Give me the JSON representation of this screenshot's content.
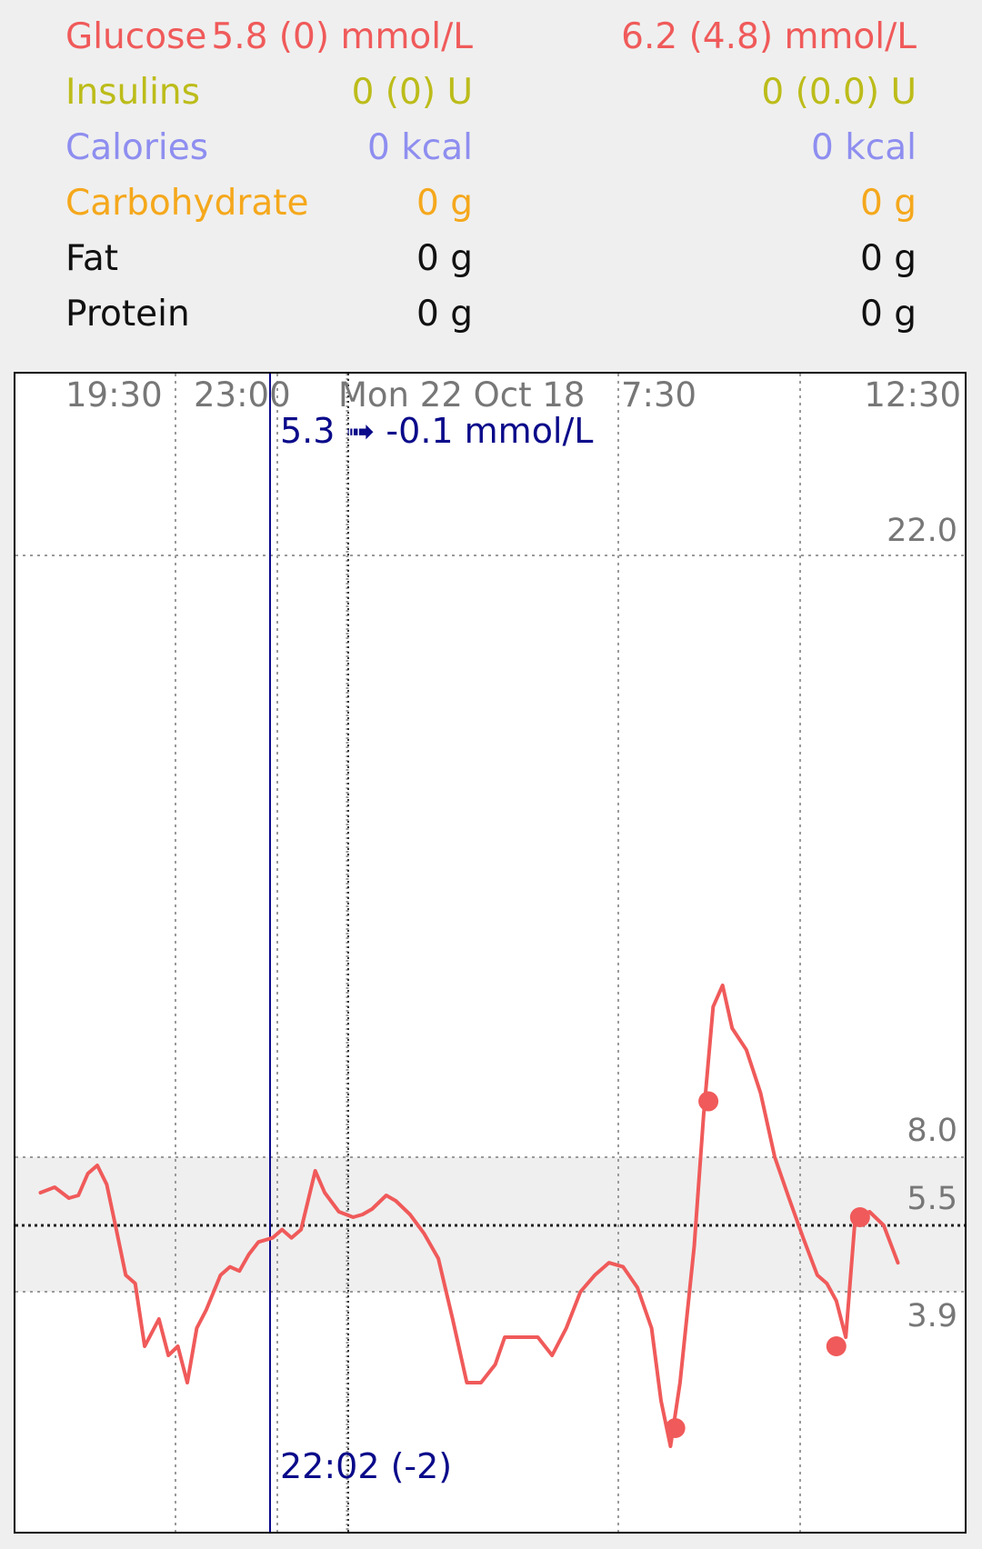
{
  "summary": {
    "rows": [
      {
        "label": "Glucose",
        "col1": "5.8 (0) mmol/L",
        "col2": "6.2 (4.8) mmol/L",
        "color": "#f05a5a"
      },
      {
        "label": "Insulins",
        "col1": "0 (0) U",
        "col2": "0 (0.0) U",
        "color": "#bcbc1a"
      },
      {
        "label": "Calories",
        "col1": "0 kcal",
        "col2": "0 kcal",
        "color": "#8e8ef0"
      },
      {
        "label": "Carbohydrate",
        "col1": "0 g",
        "col2": "0 g",
        "color": "#f5a81c"
      },
      {
        "label": "Fat",
        "col1": "0 g",
        "col2": "0 g",
        "color": "#111111"
      },
      {
        "label": "Protein",
        "col1": "0 g",
        "col2": "0 g",
        "color": "#111111"
      }
    ]
  },
  "chart_data": {
    "type": "line",
    "x_ticks": [
      "19:30",
      "23:00",
      "Mon 22 Oct 18",
      "7:30",
      "12:30"
    ],
    "y_ticks": [
      "22.0",
      "8.0",
      "5.5",
      "3.9"
    ],
    "target_range": [
      3.9,
      8.0
    ],
    "target_value": 5.5,
    "cursor": {
      "value_label": "5.3 ➟ -0.1 mmol/L",
      "time_label": "22:02 (-2)"
    },
    "series": [
      {
        "color": "#f05a5a",
        "points": [
          {
            "t": 18.0,
            "v": 6.7
          },
          {
            "t": 18.3,
            "v": 6.9
          },
          {
            "t": 18.6,
            "v": 6.5
          },
          {
            "t": 18.8,
            "v": 6.6
          },
          {
            "t": 19.0,
            "v": 7.4
          },
          {
            "t": 19.2,
            "v": 7.7
          },
          {
            "t": 19.4,
            "v": 7.0
          },
          {
            "t": 19.6,
            "v": 5.4
          },
          {
            "t": 19.8,
            "v": 4.3
          },
          {
            "t": 20.0,
            "v": 4.1
          },
          {
            "t": 20.2,
            "v": 3.3
          },
          {
            "t": 20.5,
            "v": 3.6
          },
          {
            "t": 20.7,
            "v": 3.2
          },
          {
            "t": 20.9,
            "v": 3.3
          },
          {
            "t": 21.1,
            "v": 2.9
          },
          {
            "t": 21.3,
            "v": 3.5
          },
          {
            "t": 21.5,
            "v": 3.7
          },
          {
            "t": 21.8,
            "v": 4.3
          },
          {
            "t": 22.0,
            "v": 4.5
          },
          {
            "t": 22.2,
            "v": 4.4
          },
          {
            "t": 22.4,
            "v": 4.8
          },
          {
            "t": 22.6,
            "v": 5.1
          },
          {
            "t": 22.9,
            "v": 5.2
          },
          {
            "t": 23.1,
            "v": 5.4
          },
          {
            "t": 23.3,
            "v": 5.2
          },
          {
            "t": 23.5,
            "v": 5.4
          },
          {
            "t": 23.8,
            "v": 7.5
          },
          {
            "t": 24.0,
            "v": 6.7
          },
          {
            "t": 24.3,
            "v": 6.0
          },
          {
            "t": 24.6,
            "v": 5.8
          },
          {
            "t": 24.8,
            "v": 5.9
          },
          {
            "t": 25.0,
            "v": 6.1
          },
          {
            "t": 25.3,
            "v": 6.6
          },
          {
            "t": 25.5,
            "v": 6.4
          },
          {
            "t": 25.8,
            "v": 5.9
          },
          {
            "t": 26.1,
            "v": 5.3
          },
          {
            "t": 26.4,
            "v": 4.7
          },
          {
            "t": 26.7,
            "v": 3.6
          },
          {
            "t": 27.0,
            "v": 2.9
          },
          {
            "t": 27.3,
            "v": 2.9
          },
          {
            "t": 27.6,
            "v": 3.1
          },
          {
            "t": 27.8,
            "v": 3.4
          },
          {
            "t": 28.1,
            "v": 3.4
          },
          {
            "t": 28.5,
            "v": 3.4
          },
          {
            "t": 28.8,
            "v": 3.2
          },
          {
            "t": 29.1,
            "v": 3.5
          },
          {
            "t": 29.4,
            "v": 3.9
          },
          {
            "t": 29.7,
            "v": 4.3
          },
          {
            "t": 30.0,
            "v": 4.6
          },
          {
            "t": 30.3,
            "v": 4.5
          },
          {
            "t": 30.6,
            "v": 4.0
          },
          {
            "t": 30.9,
            "v": 3.5
          },
          {
            "t": 31.1,
            "v": 2.7
          },
          {
            "t": 31.3,
            "v": 2.2
          },
          {
            "t": 31.5,
            "v": 2.9
          },
          {
            "t": 31.8,
            "v": 5.0
          },
          {
            "t": 32.0,
            "v": 9.0
          },
          {
            "t": 32.2,
            "v": 11.5
          },
          {
            "t": 32.4,
            "v": 12.0
          },
          {
            "t": 32.6,
            "v": 11.0
          },
          {
            "t": 32.9,
            "v": 10.5
          },
          {
            "t": 33.2,
            "v": 9.5
          },
          {
            "t": 33.5,
            "v": 8.0
          },
          {
            "t": 33.8,
            "v": 6.5
          },
          {
            "t": 34.1,
            "v": 5.2
          },
          {
            "t": 34.4,
            "v": 4.3
          },
          {
            "t": 34.6,
            "v": 4.1
          },
          {
            "t": 34.8,
            "v": 3.8
          },
          {
            "t": 35.0,
            "v": 3.4
          },
          {
            "t": 35.2,
            "v": 5.8
          },
          {
            "t": 35.5,
            "v": 6.0
          },
          {
            "t": 35.8,
            "v": 5.5
          },
          {
            "t": 36.1,
            "v": 4.6
          }
        ]
      }
    ],
    "markers": [
      {
        "t": 31.4,
        "v": 2.4
      },
      {
        "t": 32.1,
        "v": 9.3
      },
      {
        "t": 34.8,
        "v": 3.3
      },
      {
        "t": 35.3,
        "v": 5.8
      }
    ]
  }
}
